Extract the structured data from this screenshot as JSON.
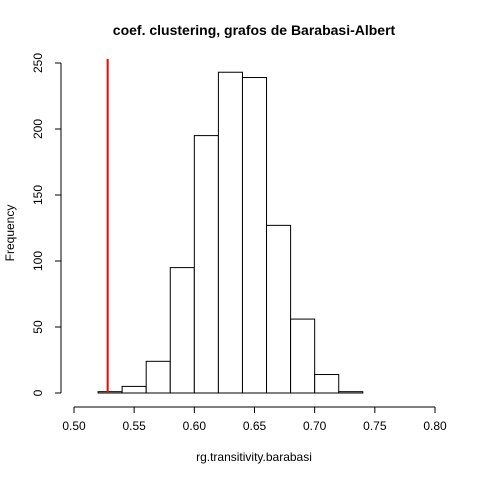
{
  "chart_data": {
    "type": "bar",
    "title": "coef. clustering, grafos de Barabasi-Albert",
    "xlabel": "rg.transitivity.barabasi",
    "ylabel": "Frequency",
    "xlim": [
      0.5,
      0.8
    ],
    "ylim": [
      0,
      250
    ],
    "x_ticks": [
      "0.50",
      "0.55",
      "0.60",
      "0.65",
      "0.70",
      "0.75",
      "0.80"
    ],
    "y_ticks": [
      "0",
      "50",
      "100",
      "150",
      "200",
      "250"
    ],
    "bins": [
      {
        "start": 0.52,
        "end": 0.54,
        "count": 1
      },
      {
        "start": 0.54,
        "end": 0.56,
        "count": 5
      },
      {
        "start": 0.56,
        "end": 0.58,
        "count": 24
      },
      {
        "start": 0.58,
        "end": 0.6,
        "count": 95
      },
      {
        "start": 0.6,
        "end": 0.62,
        "count": 195
      },
      {
        "start": 0.62,
        "end": 0.64,
        "count": 243
      },
      {
        "start": 0.64,
        "end": 0.66,
        "count": 239
      },
      {
        "start": 0.66,
        "end": 0.68,
        "count": 127
      },
      {
        "start": 0.68,
        "end": 0.7,
        "count": 56
      },
      {
        "start": 0.7,
        "end": 0.72,
        "count": 14
      },
      {
        "start": 0.72,
        "end": 0.74,
        "count": 1
      }
    ],
    "vline": {
      "x": 0.528,
      "color": "#ff0000"
    },
    "grid": false,
    "legend": "none"
  }
}
